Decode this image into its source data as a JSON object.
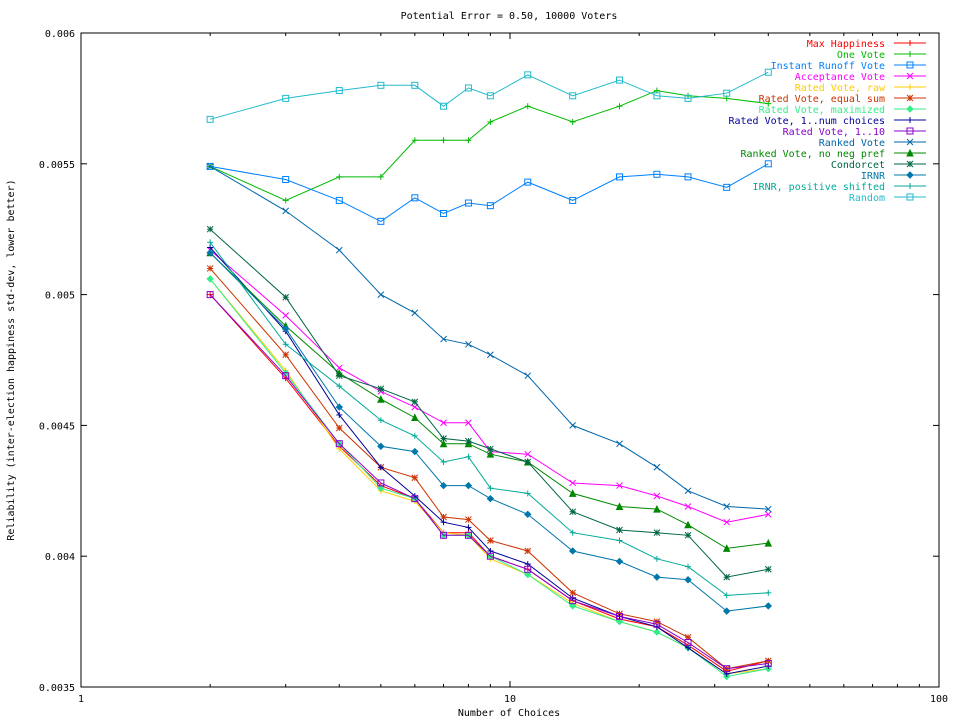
{
  "chart_data": {
    "type": "line",
    "title": "Potential Error = 0.50, 10000 Voters",
    "xlabel": "Number of Choices",
    "ylabel": "Reliability (inter-election happiness std-dev, lower better)",
    "xscale": "log",
    "xlim": [
      1,
      100
    ],
    "ylim": [
      0.0035,
      0.006
    ],
    "xticks": [
      1,
      10,
      100
    ],
    "xtick_labels": [
      "1",
      "10",
      "100"
    ],
    "yticks": [
      0.0035,
      0.004,
      0.0045,
      0.005,
      0.0055,
      0.006
    ],
    "ytick_labels": [
      "0.0035",
      "0.004",
      "0.0045",
      "0.005",
      "0.0055",
      "0.006"
    ],
    "grid": false,
    "legend_position": "top-right",
    "x": [
      2,
      3,
      4,
      5,
      6,
      7,
      8,
      9,
      11,
      14,
      18,
      22,
      26,
      32,
      40
    ],
    "series": [
      {
        "name": "Max Happiness",
        "color": "#ff0000",
        "marker": "plus",
        "values": [
          0.005,
          0.00468,
          0.00442,
          0.00427,
          0.00422,
          0.00409,
          0.00409,
          0.004,
          0.00395,
          0.00383,
          0.00376,
          0.00373,
          0.00366,
          0.00356,
          0.0036
        ]
      },
      {
        "name": "One Vote",
        "color": "#00bb00",
        "marker": "plus",
        "values": [
          0.00549,
          0.00536,
          0.00545,
          0.00545,
          0.00559,
          0.00559,
          0.00559,
          0.00566,
          0.00572,
          0.00566,
          0.00572,
          0.00578,
          0.00576,
          0.00575,
          0.00573
        ]
      },
      {
        "name": "Instant Runoff Vote",
        "color": "#0080ff",
        "marker": "square",
        "values": [
          0.00549,
          0.00544,
          0.00536,
          0.00528,
          0.00537,
          0.00531,
          0.00535,
          0.00534,
          0.00543,
          0.00536,
          0.00545,
          0.00546,
          0.00545,
          0.00541,
          0.0055
        ]
      },
      {
        "name": "Acceptance Vote",
        "color": "#ff00ff",
        "marker": "cross",
        "values": [
          0.00517,
          0.00492,
          0.00472,
          0.00463,
          0.00457,
          0.00451,
          0.00451,
          0.0044,
          0.00439,
          0.00428,
          0.00427,
          0.00423,
          0.00419,
          0.00413,
          0.00416
        ]
      },
      {
        "name": "Rated Vote, raw",
        "color": "#ffcc00",
        "marker": "plus",
        "values": [
          0.00506,
          0.00471,
          0.00441,
          0.00425,
          0.00421,
          0.00409,
          0.00408,
          0.00399,
          0.00393,
          0.00382,
          0.00375,
          0.00371,
          0.00365,
          0.00355,
          0.00357
        ]
      },
      {
        "name": "Rated Vote, equal sum",
        "color": "#cc3300",
        "marker": "star",
        "values": [
          0.0051,
          0.00477,
          0.00449,
          0.00434,
          0.0043,
          0.00415,
          0.00414,
          0.00406,
          0.00402,
          0.00386,
          0.00378,
          0.00375,
          0.00369,
          0.00357,
          0.0036
        ]
      },
      {
        "name": "Rated Vote, maximized",
        "color": "#33ee88",
        "marker": "diamond",
        "values": [
          0.00506,
          0.0047,
          0.00443,
          0.00426,
          0.00422,
          0.00408,
          0.00408,
          0.004,
          0.00393,
          0.00381,
          0.00375,
          0.00371,
          0.00365,
          0.00354,
          0.00357
        ]
      },
      {
        "name": "Rated Vote, 1..num choices",
        "color": "#000099",
        "marker": "plus",
        "values": [
          0.00518,
          0.00486,
          0.00454,
          0.00434,
          0.00423,
          0.00413,
          0.00411,
          0.00402,
          0.00397,
          0.00384,
          0.00377,
          0.00373,
          0.00365,
          0.00355,
          0.00358
        ]
      },
      {
        "name": "Rated Vote, 1..10",
        "color": "#8800cc",
        "marker": "square",
        "values": [
          0.005,
          0.00469,
          0.00443,
          0.00428,
          0.00422,
          0.00408,
          0.00408,
          0.004,
          0.00395,
          0.00383,
          0.00377,
          0.00374,
          0.00367,
          0.00357,
          0.00359
        ]
      },
      {
        "name": "Ranked Vote",
        "color": "#0066aa",
        "marker": "cross",
        "values": [
          0.00549,
          0.00532,
          0.00517,
          0.005,
          0.00493,
          0.00483,
          0.00481,
          0.00477,
          0.00469,
          0.0045,
          0.00443,
          0.00434,
          0.00425,
          0.00419,
          0.00418
        ]
      },
      {
        "name": "Ranked Vote, no neg pref",
        "color": "#008800",
        "marker": "triangle",
        "values": [
          0.00516,
          0.00488,
          0.0047,
          0.0046,
          0.00453,
          0.00443,
          0.00443,
          0.00439,
          0.00436,
          0.00424,
          0.00419,
          0.00418,
          0.00412,
          0.00403,
          0.00405
        ]
      },
      {
        "name": "Condorcet",
        "color": "#006644",
        "marker": "star",
        "values": [
          0.00525,
          0.00499,
          0.00469,
          0.00464,
          0.00459,
          0.00445,
          0.00444,
          0.00441,
          0.00436,
          0.00417,
          0.0041,
          0.00409,
          0.00408,
          0.00392,
          0.00395
        ]
      },
      {
        "name": "IRNR",
        "color": "#0077aa",
        "marker": "diamond",
        "values": [
          0.00516,
          0.00487,
          0.00457,
          0.00442,
          0.0044,
          0.00427,
          0.00427,
          0.00422,
          0.00416,
          0.00402,
          0.00398,
          0.00392,
          0.00391,
          0.00379,
          0.00381
        ]
      },
      {
        "name": "IRNR, positive shifted",
        "color": "#00aa99",
        "marker": "plus",
        "values": [
          0.0052,
          0.00481,
          0.00465,
          0.00452,
          0.00446,
          0.00436,
          0.00438,
          0.00426,
          0.00424,
          0.00409,
          0.00406,
          0.00399,
          0.00396,
          0.00385,
          0.00386
        ]
      },
      {
        "name": "Random",
        "color": "#22bbcc",
        "marker": "square",
        "values": [
          0.00567,
          0.00575,
          0.00578,
          0.0058,
          0.0058,
          0.00572,
          0.00579,
          0.00576,
          0.00584,
          0.00576,
          0.00582,
          0.00576,
          0.00575,
          0.00577,
          0.00585
        ]
      }
    ]
  }
}
